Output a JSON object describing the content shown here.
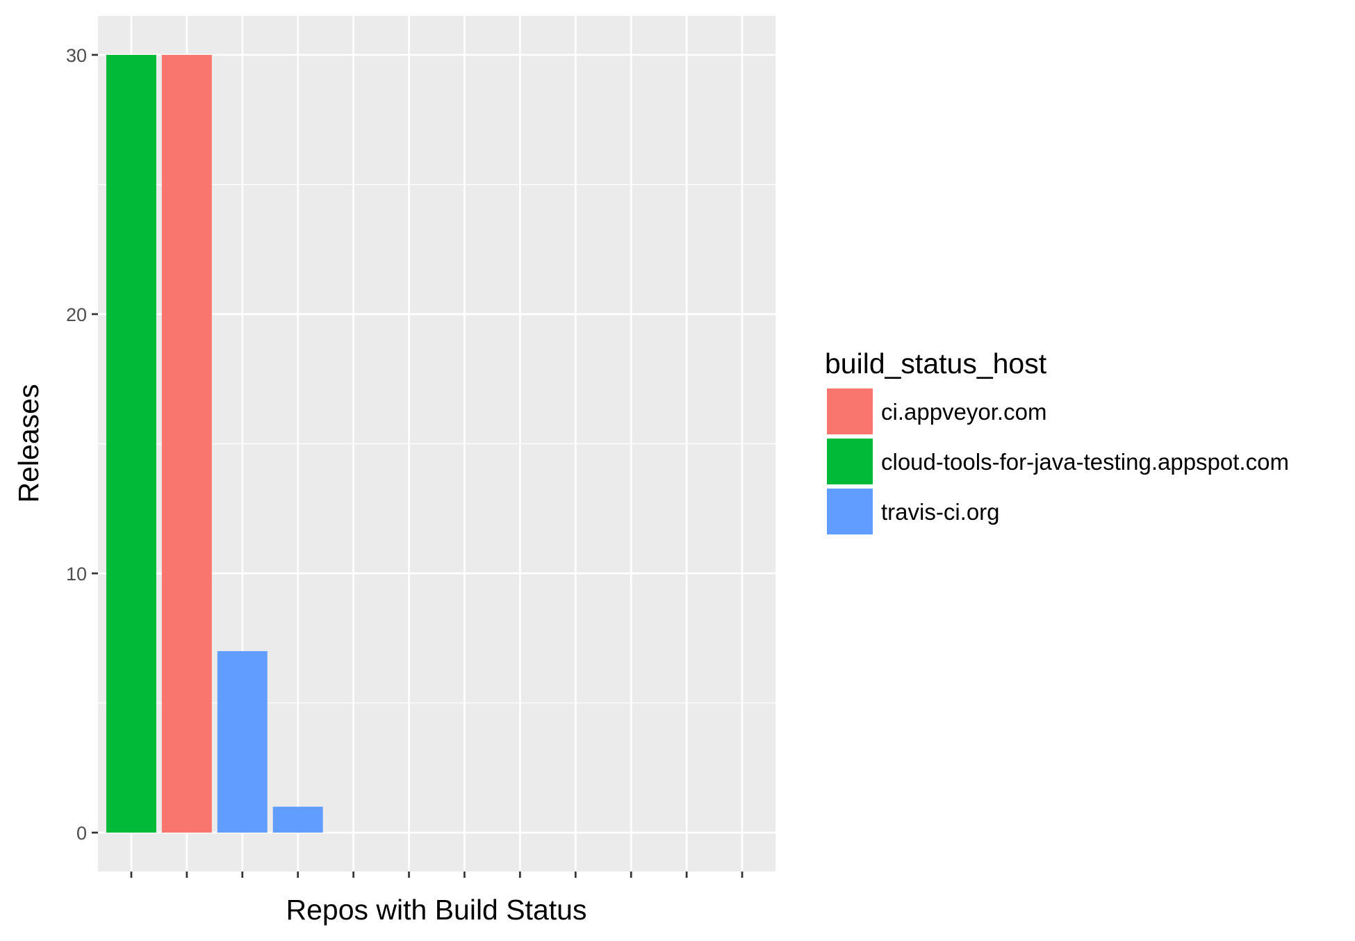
{
  "chart_data": {
    "type": "bar",
    "title": "",
    "xlabel": "Repos with Build Status",
    "ylabel": "Releases",
    "ylim": [
      -1.5,
      31.5
    ],
    "y_ticks": [
      0,
      10,
      20,
      30
    ],
    "x_tick_count": 12,
    "x_tick_labels": [],
    "grid": true,
    "legend": {
      "title": "build_status_host",
      "placement": "right",
      "entries": [
        {
          "label": "ci.appveyor.com",
          "color": "#F8766D"
        },
        {
          "label": "cloud-tools-for-java-testing.appspot.com",
          "color": "#00BA38"
        },
        {
          "label": "travis-ci.org",
          "color": "#619CFF"
        }
      ]
    },
    "bars": [
      {
        "position": 1,
        "value": 30,
        "series": "cloud-tools-for-java-testing.appspot.com"
      },
      {
        "position": 2,
        "value": 30,
        "series": "ci.appveyor.com"
      },
      {
        "position": 3,
        "value": 7,
        "series": "travis-ci.org"
      },
      {
        "position": 4,
        "value": 1,
        "series": "travis-ci.org"
      },
      {
        "position": 5,
        "value": 0,
        "series": "travis-ci.org"
      },
      {
        "position": 6,
        "value": 0,
        "series": "travis-ci.org"
      },
      {
        "position": 7,
        "value": 0,
        "series": "travis-ci.org"
      },
      {
        "position": 8,
        "value": 0,
        "series": "travis-ci.org"
      },
      {
        "position": 9,
        "value": 0,
        "series": "travis-ci.org"
      },
      {
        "position": 10,
        "value": 0,
        "series": "travis-ci.org"
      },
      {
        "position": 11,
        "value": 0,
        "series": "travis-ci.org"
      },
      {
        "position": 12,
        "value": 0,
        "series": "travis-ci.org"
      }
    ],
    "colors": {
      "panel_background": "#EBEBEB",
      "grid": "#FFFFFF",
      "tick": "#333333"
    }
  }
}
